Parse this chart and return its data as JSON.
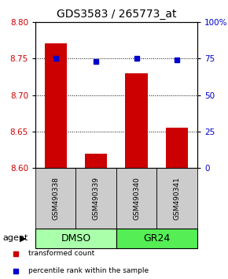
{
  "title": "GDS3583 / 265773_at",
  "samples": [
    "GSM490338",
    "GSM490339",
    "GSM490340",
    "GSM490341"
  ],
  "bar_values": [
    8.77,
    8.62,
    8.73,
    8.655
  ],
  "percentile_values": [
    75,
    73,
    75,
    74
  ],
  "ylim_left": [
    8.6,
    8.8
  ],
  "ylim_right": [
    0,
    100
  ],
  "yticks_left": [
    8.6,
    8.65,
    8.7,
    8.75,
    8.8
  ],
  "yticks_right": [
    0,
    25,
    50,
    75,
    100
  ],
  "bar_color": "#cc0000",
  "dot_color": "#0000cc",
  "bar_width": 0.55,
  "groups": [
    {
      "label": "DMSO",
      "indices": [
        0,
        1
      ],
      "color": "#aaffaa"
    },
    {
      "label": "GR24",
      "indices": [
        2,
        3
      ],
      "color": "#55ee55"
    }
  ],
  "sample_box_color": "#cccccc",
  "legend_items": [
    {
      "color": "#cc0000",
      "label": "transformed count"
    },
    {
      "color": "#0000cc",
      "label": "percentile rank within the sample"
    }
  ],
  "title_fontsize": 10,
  "tick_fontsize": 7.5,
  "sample_fontsize": 6.5,
  "group_fontsize": 9,
  "legend_fontsize": 6.5,
  "agent_fontsize": 8
}
